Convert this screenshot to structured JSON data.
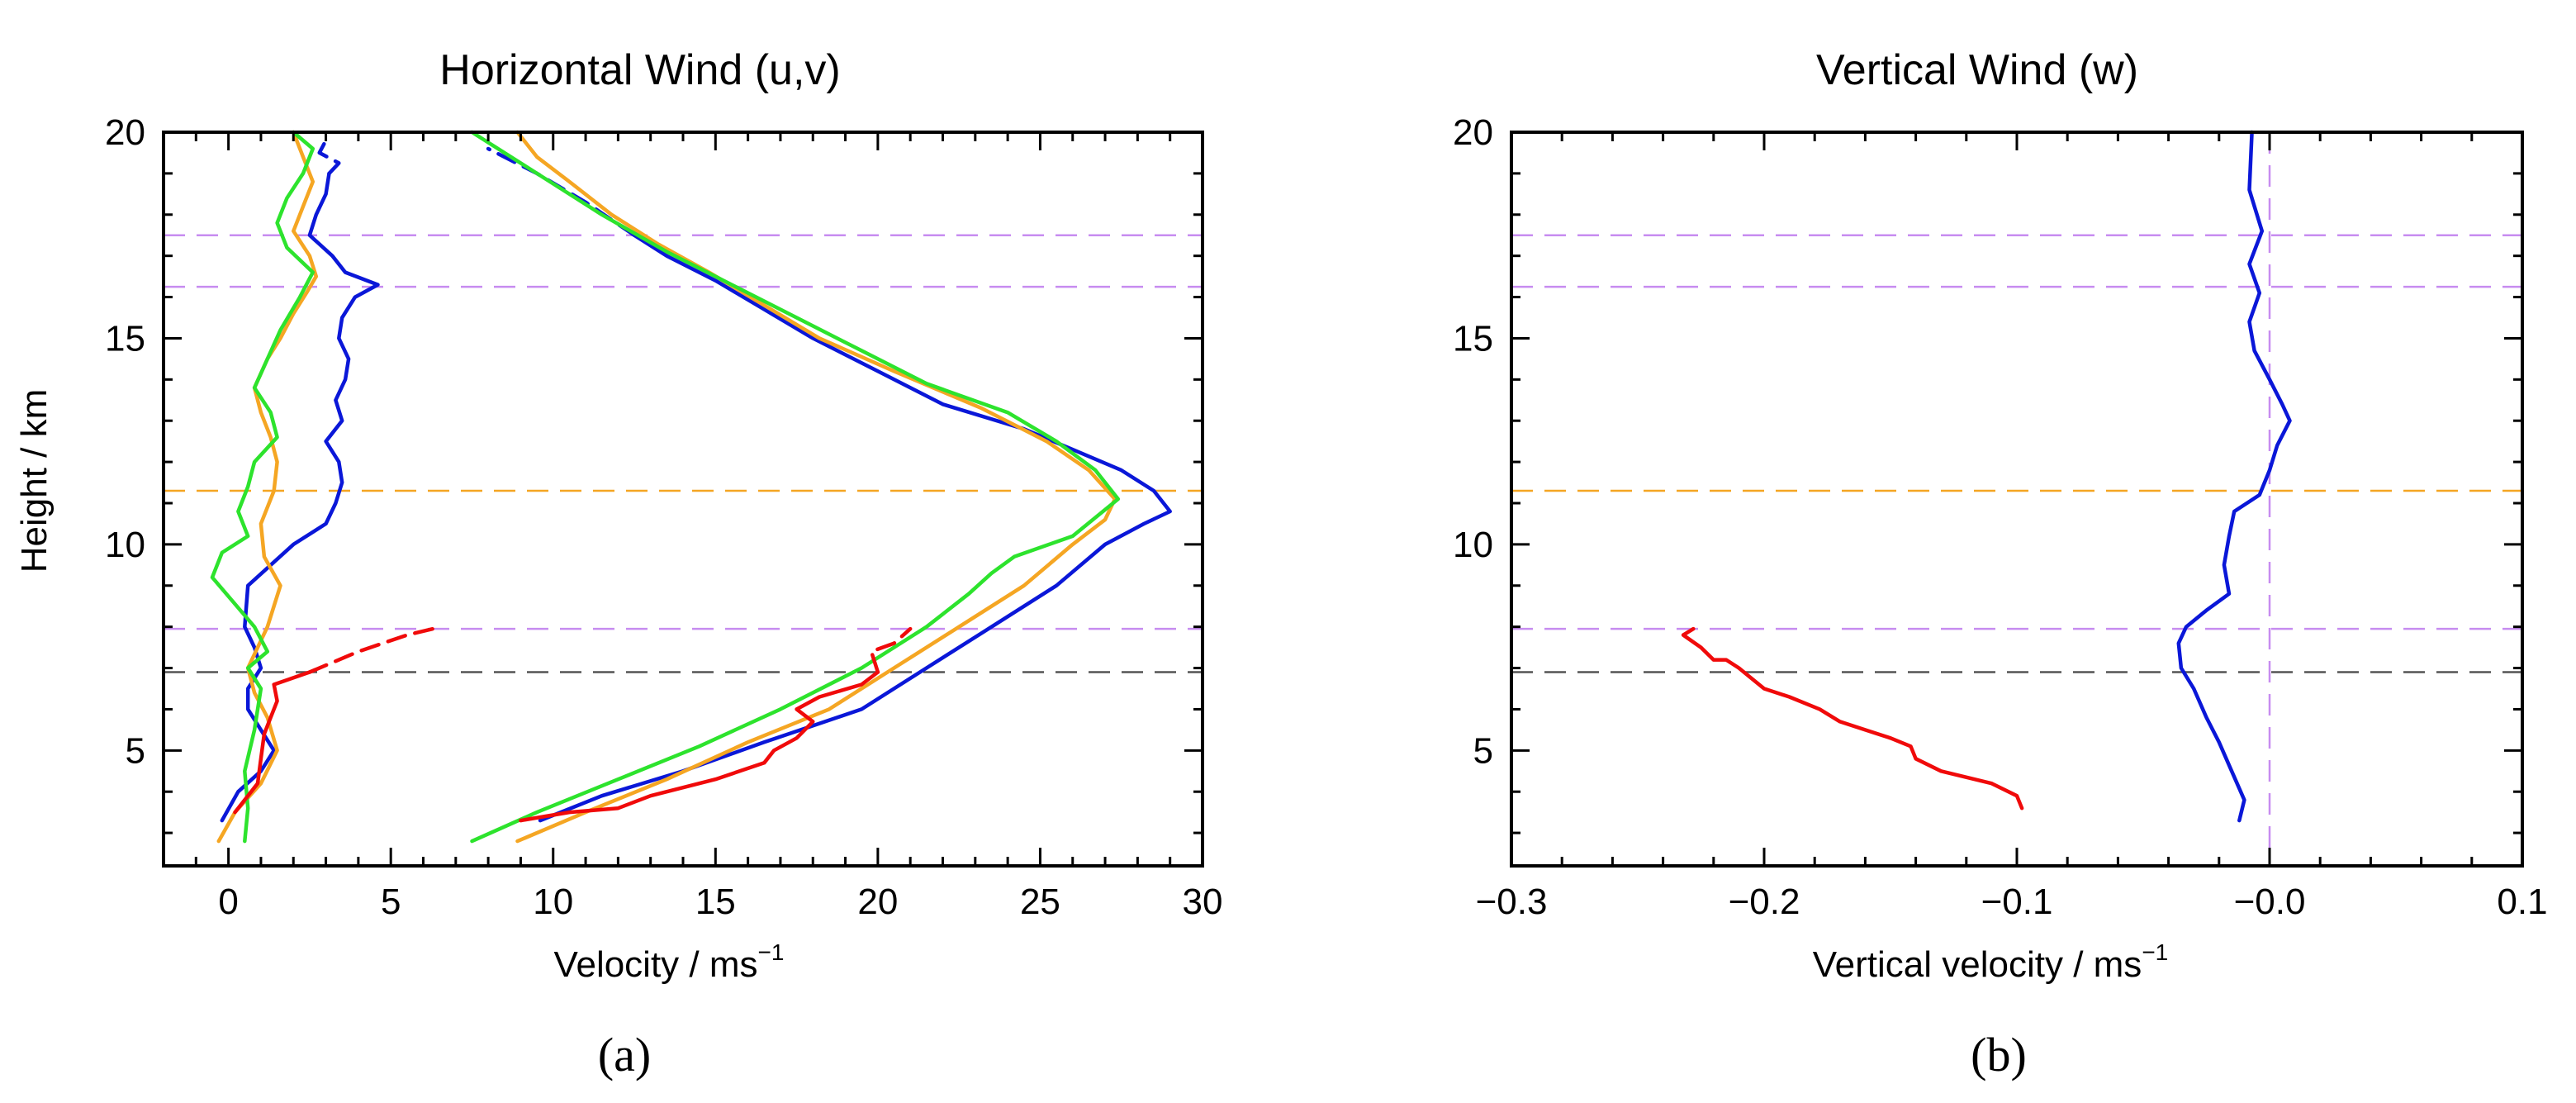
{
  "chart_data": [
    {
      "id": "a",
      "type": "line",
      "panel_label": "(a)",
      "title": "Horizontal Wind (u,v)",
      "xlabel": "Velocity /  ms",
      "xlabel_superscript": "−1",
      "ylabel": "Height / km",
      "xlim": [
        -2,
        30
      ],
      "ylim": [
        2.2,
        20
      ],
      "xticks": [
        0,
        5,
        10,
        15,
        20,
        25,
        30
      ],
      "xtick_labels": [
        "0",
        "5",
        "10",
        "15",
        "20",
        "25",
        "30"
      ],
      "yticks": [
        5,
        10,
        15,
        20
      ],
      "ytick_labels": [
        "5",
        "10",
        "15",
        "20"
      ],
      "hlines": [
        {
          "y": 17.5,
          "color": "#c78cf0"
        },
        {
          "y": 16.25,
          "color": "#c78cf0"
        },
        {
          "y": 11.3,
          "color": "#f5a623"
        },
        {
          "y": 7.95,
          "color": "#c78cf0"
        },
        {
          "y": 6.9,
          "color": "#555555"
        }
      ],
      "series": [
        {
          "name": "blue-u",
          "color": "#0a17d8",
          "dash": false,
          "x": [
            -0.2,
            0.3,
            1.0,
            1.4,
            1.0,
            0.6,
            0.6,
            1.0,
            0.8,
            0.5,
            0.6,
            2.0,
            3.0,
            3.3,
            3.5,
            3.4,
            3.0,
            3.5,
            3.3,
            3.6,
            3.7,
            3.4,
            3.5,
            3.9,
            4.6,
            3.6,
            3.2,
            2.5,
            2.7,
            3.0,
            3.1
          ],
          "y": [
            3.3,
            4.0,
            4.5,
            5.0,
            5.5,
            6.0,
            6.5,
            7.0,
            7.5,
            8.0,
            9.0,
            10.0,
            10.5,
            11.0,
            11.5,
            12.0,
            12.5,
            13.0,
            13.5,
            14.0,
            14.5,
            15.0,
            15.5,
            16.0,
            16.3,
            16.6,
            17.0,
            17.5,
            18.0,
            18.5,
            19.0
          ]
        },
        {
          "name": "blue-u-dashed",
          "color": "#0a17d8",
          "dash": true,
          "x": [
            3.1,
            3.4,
            2.8,
            3.0
          ],
          "y": [
            19.0,
            19.25,
            19.5,
            19.8
          ]
        },
        {
          "name": "blue-v",
          "color": "#0a17d8",
          "dash": false,
          "x": [
            9.6,
            11.5,
            14.0,
            16.5,
            19.5,
            21.5,
            23.5,
            25.5,
            27.0,
            28.2,
            29.0,
            28.5,
            27.5,
            26.0,
            24.5,
            22.0,
            20.0,
            18.0,
            16.5,
            15.0,
            13.5,
            12.5
          ],
          "y": [
            3.3,
            3.9,
            4.5,
            5.2,
            6.0,
            7.0,
            8.0,
            9.0,
            10.0,
            10.5,
            10.8,
            11.3,
            11.8,
            12.3,
            12.8,
            13.4,
            14.2,
            15.0,
            15.7,
            16.4,
            17.0,
            17.5
          ]
        },
        {
          "name": "blue-v-dashed",
          "color": "#0a17d8",
          "dash": true,
          "x": [
            12.5,
            11.0,
            9.5,
            8.0
          ],
          "y": [
            17.5,
            18.3,
            19.0,
            19.6
          ]
        },
        {
          "name": "orange-u",
          "color": "#f5a623",
          "dash": false,
          "x": [
            -0.3,
            0.2,
            1.0,
            1.5,
            1.2,
            0.8,
            0.6,
            0.9,
            1.2,
            1.6,
            1.1,
            1.0,
            1.4,
            1.5,
            1.3,
            1.0,
            0.8,
            1.2,
            1.6,
            2.0,
            2.4,
            2.7,
            2.5,
            2.0,
            2.3,
            2.6,
            2.3,
            2.0
          ],
          "y": [
            2.8,
            3.5,
            4.2,
            5.0,
            5.8,
            6.4,
            7.0,
            7.5,
            8.0,
            9.0,
            9.7,
            10.5,
            11.3,
            12.0,
            12.6,
            13.2,
            13.8,
            14.5,
            15.0,
            15.6,
            16.1,
            16.5,
            17.0,
            17.6,
            18.2,
            18.8,
            19.4,
            20.0
          ]
        },
        {
          "name": "orange-v",
          "color": "#f5a623",
          "dash": false,
          "x": [
            8.9,
            11.0,
            13.5,
            16.0,
            18.5,
            20.5,
            22.5,
            24.5,
            26.0,
            27.0,
            27.3,
            26.5,
            25.2,
            23.2,
            20.5,
            18.2,
            16.5,
            14.8,
            13.2,
            11.8,
            10.5,
            9.5,
            8.9
          ],
          "y": [
            2.8,
            3.5,
            4.3,
            5.2,
            6.0,
            7.0,
            8.0,
            9.0,
            10.0,
            10.6,
            11.1,
            11.8,
            12.5,
            13.3,
            14.2,
            15.0,
            15.8,
            16.6,
            17.3,
            18.0,
            18.8,
            19.4,
            20.0
          ]
        },
        {
          "name": "green-u",
          "color": "#2de32d",
          "dash": false,
          "x": [
            0.5,
            0.6,
            0.5,
            0.8,
            1.0,
            0.6,
            1.2,
            0.8,
            -0.5,
            -0.2,
            0.6,
            0.3,
            0.6,
            0.8,
            1.5,
            1.3,
            0.8,
            1.2,
            1.6,
            2.2,
            2.6,
            1.8,
            1.5,
            1.8,
            2.3,
            2.6,
            2.0
          ],
          "y": [
            2.8,
            3.6,
            4.5,
            5.5,
            6.5,
            7.0,
            7.4,
            8.0,
            9.2,
            9.8,
            10.2,
            10.8,
            11.4,
            12.0,
            12.6,
            13.2,
            13.8,
            14.5,
            15.2,
            16.0,
            16.6,
            17.2,
            17.8,
            18.4,
            19.0,
            19.6,
            20.0
          ]
        },
        {
          "name": "green-v",
          "color": "#2de32d",
          "dash": false,
          "x": [
            7.5,
            9.5,
            12.0,
            14.5,
            17.0,
            19.5,
            21.5,
            22.8,
            23.5,
            24.2,
            26.0,
            27.4,
            26.7,
            25.5,
            24.0,
            21.5,
            19.5,
            17.5,
            15.5,
            13.5,
            11.5,
            9.5,
            7.5
          ],
          "y": [
            2.8,
            3.5,
            4.3,
            5.1,
            6.0,
            7.0,
            8.0,
            8.8,
            9.3,
            9.7,
            10.2,
            11.1,
            11.8,
            12.5,
            13.2,
            13.9,
            14.7,
            15.5,
            16.3,
            17.1,
            18.0,
            19.0,
            20.0
          ]
        },
        {
          "name": "red-u",
          "color": "#f00a0a",
          "dash": false,
          "x": [
            0.2,
            0.5,
            0.9,
            1.0,
            1.1,
            1.3,
            1.5,
            1.4,
            2.5
          ],
          "y": [
            3.5,
            3.8,
            4.2,
            4.8,
            5.4,
            5.8,
            6.2,
            6.6,
            6.9
          ]
        },
        {
          "name": "red-u-dashed",
          "color": "#f00a0a",
          "dash": true,
          "x": [
            2.5,
            4.0,
            5.5,
            6.3
          ],
          "y": [
            6.9,
            7.4,
            7.8,
            7.95
          ]
        },
        {
          "name": "red-v",
          "color": "#f00a0a",
          "dash": false,
          "x": [
            9.0,
            10.5,
            12.0,
            13.0,
            14.0,
            15.0,
            16.5,
            16.8,
            17.5,
            18.0,
            17.5,
            18.2,
            19.5,
            20.0
          ],
          "y": [
            3.3,
            3.5,
            3.6,
            3.9,
            4.1,
            4.3,
            4.7,
            5.0,
            5.3,
            5.7,
            6.0,
            6.3,
            6.6,
            6.9
          ]
        },
        {
          "name": "red-v-dashed",
          "color": "#f00a0a",
          "dash": true,
          "x": [
            20.0,
            19.8,
            20.5,
            21.0
          ],
          "y": [
            6.9,
            7.4,
            7.6,
            7.95
          ]
        }
      ]
    },
    {
      "id": "b",
      "type": "line",
      "panel_label": "(b)",
      "title": "Vertical Wind (w)",
      "xlabel": "Vertical velocity /  ms",
      "xlabel_superscript": "−1",
      "ylabel": "",
      "xlim": [
        -0.3,
        0.1
      ],
      "ylim": [
        2.2,
        20
      ],
      "xticks": [
        -0.3,
        -0.2,
        -0.1,
        0.0,
        0.1
      ],
      "xtick_labels": [
        "−0.3",
        "−0.2",
        "−0.1",
        "−0.0",
        "0.1"
      ],
      "yticks": [
        5,
        10,
        15,
        20
      ],
      "ytick_labels": [
        "5",
        "10",
        "15",
        "20"
      ],
      "hlines": [
        {
          "y": 17.5,
          "color": "#c78cf0"
        },
        {
          "y": 16.25,
          "color": "#c78cf0"
        },
        {
          "y": 11.3,
          "color": "#f5a623"
        },
        {
          "y": 7.95,
          "color": "#c78cf0"
        },
        {
          "y": 6.9,
          "color": "#555555"
        }
      ],
      "vlines": [
        {
          "x": 0.0,
          "color": "#c78cf0"
        }
      ],
      "series": [
        {
          "name": "blue-w",
          "color": "#0a17d8",
          "dash": false,
          "x": [
            -0.012,
            -0.01,
            -0.015,
            -0.02,
            -0.025,
            -0.03,
            -0.035,
            -0.036,
            -0.033,
            -0.025,
            -0.016,
            -0.018,
            -0.016,
            -0.014,
            -0.004,
            0.0,
            0.003,
            0.008,
            0.005,
            0.0,
            -0.006,
            -0.008,
            -0.004,
            -0.008,
            -0.003,
            -0.008,
            -0.007
          ],
          "y": [
            3.3,
            3.8,
            4.5,
            5.2,
            5.8,
            6.5,
            7.0,
            7.6,
            8.0,
            8.4,
            8.8,
            9.5,
            10.2,
            10.8,
            11.2,
            11.8,
            12.4,
            13.0,
            13.4,
            14.0,
            14.7,
            15.4,
            16.1,
            16.8,
            17.6,
            18.6,
            20.0
          ]
        },
        {
          "name": "red-w",
          "color": "#f00a0a",
          "dash": false,
          "x": [
            -0.098,
            -0.1,
            -0.11,
            -0.13,
            -0.14,
            -0.142,
            -0.15,
            -0.16,
            -0.17,
            -0.178,
            -0.19,
            -0.2,
            -0.206,
            -0.21,
            -0.215,
            -0.22,
            -0.225,
            -0.232,
            -0.228
          ],
          "y": [
            3.6,
            3.9,
            4.2,
            4.5,
            4.8,
            5.1,
            5.3,
            5.5,
            5.7,
            6.0,
            6.3,
            6.5,
            6.8,
            7.0,
            7.2,
            7.2,
            7.5,
            7.8,
            7.95
          ]
        }
      ]
    }
  ]
}
